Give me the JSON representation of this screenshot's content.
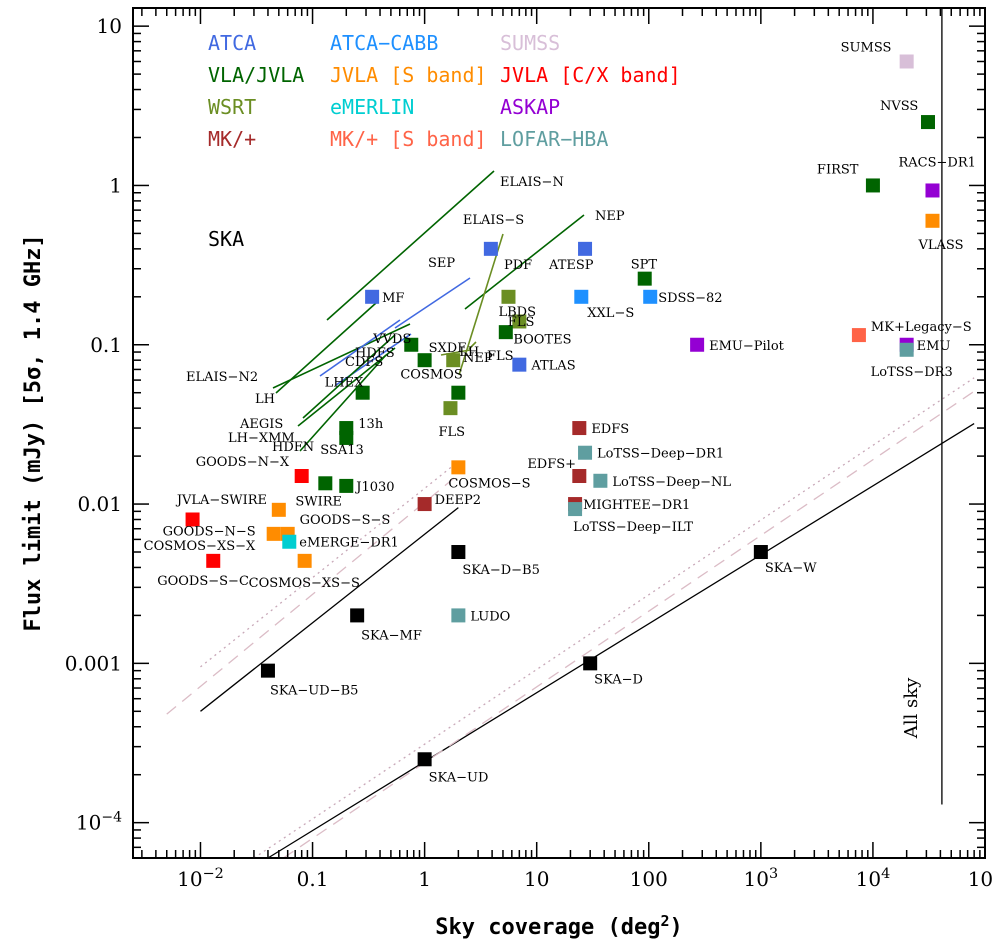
{
  "chart_data": {
    "type": "scatter",
    "xlabel": "Sky coverage (deg²)",
    "ylabel": "Flux limit (mJy) [5σ, 1.4 GHz]",
    "x_scale": "log",
    "y_scale": "log",
    "xlim": [
      0.0025,
      100000
    ],
    "ylim": [
      6e-05,
      13
    ],
    "x_ticks": [
      {
        "v": 0.01,
        "mant": "10",
        "exp": "−2"
      },
      {
        "v": 0.1,
        "text": "0.1"
      },
      {
        "v": 1,
        "text": "1"
      },
      {
        "v": 10,
        "text": "10"
      },
      {
        "v": 100,
        "text": "100"
      },
      {
        "v": 1000,
        "mant": "10",
        "exp": "3"
      },
      {
        "v": 10000,
        "mant": "10",
        "exp": "4"
      },
      {
        "v": 100000,
        "mant": "10",
        "exp": "5"
      }
    ],
    "y_ticks": [
      {
        "v": 0.0001,
        "mant": "10",
        "exp": "−4"
      },
      {
        "v": 0.001,
        "text": "0.001"
      },
      {
        "v": 0.01,
        "text": "0.01"
      },
      {
        "v": 0.1,
        "text": "0.1"
      },
      {
        "v": 1,
        "text": "1"
      },
      {
        "v": 10,
        "text": "10"
      }
    ],
    "legend": [
      {
        "label": "ATCA",
        "color": "#4169e1"
      },
      {
        "label": "ATCA−CABB",
        "color": "#1e90ff"
      },
      {
        "label": "SUMSS",
        "color": "#d8bfd8"
      },
      {
        "label": "VLA/JVLA",
        "color": "#006400"
      },
      {
        "label": "JVLA [S band]",
        "color": "#ff8c00"
      },
      {
        "label": "JVLA [C/X band]",
        "color": "#ff0000"
      },
      {
        "label": "WSRT",
        "color": "#6b8e23"
      },
      {
        "label": "eMERLIN",
        "color": "#00ced1"
      },
      {
        "label": "ASKAP",
        "color": "#9400d3"
      },
      {
        "label": "MK/+",
        "color": "#a52a2a"
      },
      {
        "label": "MK/+ [S band]",
        "color": "#ff6347"
      },
      {
        "label": "LOFAR−HBA",
        "color": "#5f9ea0"
      }
    ],
    "ska_label": "SKA",
    "all_sky_label": "All sky",
    "points": [
      {
        "x": 20000,
        "y": 6,
        "color": "#d8bfd8",
        "label": "SUMSS"
      },
      {
        "x": 31000,
        "y": 2.5,
        "color": "#006400",
        "label": "NVSS"
      },
      {
        "x": 10000,
        "y": 1,
        "color": "#006400",
        "label": "FIRST"
      },
      {
        "x": 34000,
        "y": 0.93,
        "color": "#9400d3",
        "label": "RACS−DR1"
      },
      {
        "x": 34000,
        "y": 0.6,
        "color": "#ff8c00",
        "label": "VLASS"
      },
      {
        "x": 7500,
        "y": 0.115,
        "color": "#ff6347",
        "label": "MK+Legacy−S"
      },
      {
        "x": 20000,
        "y": 0.1,
        "color": "#9400d3",
        "label": "EMU"
      },
      {
        "x": 20000,
        "y": 0.093,
        "color": "#5f9ea0",
        "label": "LoTSS−DR3"
      },
      {
        "x": 270,
        "y": 0.1,
        "color": "#9400d3",
        "label": "EMU−Pilot"
      },
      {
        "x": 92,
        "y": 0.26,
        "color": "#006400",
        "label": "SPT"
      },
      {
        "x": 103,
        "y": 0.2,
        "color": "#1e90ff",
        "label": "SDSS−82"
      },
      {
        "x": 27,
        "y": 0.4,
        "color": "#4169e1",
        "label": "ATESP"
      },
      {
        "x": 25,
        "y": 0.2,
        "color": "#1e90ff",
        "label": "XXL−S"
      },
      {
        "x": 3.9,
        "y": 0.4,
        "color": "#4169e1",
        "label": "ELAIS−S"
      },
      {
        "x": 5.6,
        "y": 0.2,
        "color": "#6b8e23",
        "label": "LBDS"
      },
      {
        "x": 7,
        "y": 0.14,
        "color": "#6b8e23",
        "label": "BOOTES"
      },
      {
        "x": 5.3,
        "y": 0.12,
        "color": "#006400",
        "label": "FLS"
      },
      {
        "x": 7,
        "y": 0.075,
        "color": "#4169e1",
        "label": "ATLAS"
      },
      {
        "x": 0.34,
        "y": 0.2,
        "color": "#4169e1",
        "label": "MF"
      },
      {
        "x": 0.76,
        "y": 0.1,
        "color": "#006400",
        "label": "VVDS"
      },
      {
        "x": 1,
        "y": 0.08,
        "color": "#006400",
        "label": "SXDF"
      },
      {
        "x": 1.8,
        "y": 0.08,
        "color": "#6b8e23",
        "label": "LH"
      },
      {
        "x": 2,
        "y": 0.05,
        "color": "#006400",
        "label": "COSMOS"
      },
      {
        "x": 0.28,
        "y": 0.05,
        "color": "#006400",
        "label": "LHEX"
      },
      {
        "x": 1.7,
        "y": 0.04,
        "color": "#6b8e23",
        "label": "FLS"
      },
      {
        "x": 0.2,
        "y": 0.03,
        "color": "#006400",
        "label": "13h"
      },
      {
        "x": 0.2,
        "y": 0.026,
        "color": "#006400",
        "label": "SSA13"
      },
      {
        "x": 0.13,
        "y": 0.0135,
        "color": "#006400",
        "label": "SWIRE"
      },
      {
        "x": 0.2,
        "y": 0.013,
        "color": "#006400",
        "label": "J1030"
      },
      {
        "x": 0.08,
        "y": 0.015,
        "color": "#ff0000",
        "label": "GOODS−N−X"
      },
      {
        "x": 0.05,
        "y": 0.0092,
        "color": "#ff8c00",
        "label": "JVLA−SWIRE"
      },
      {
        "x": 0.0085,
        "y": 0.008,
        "color": "#ff0000",
        "label": "GOODS−N−S"
      },
      {
        "x": 0.045,
        "y": 0.0065,
        "color": "#ff8c00",
        "label": "COSMOS−XS−X"
      },
      {
        "x": 0.06,
        "y": 0.0065,
        "color": "#ff8c00",
        "label": "GOODS−S−S"
      },
      {
        "x": 0.062,
        "y": 0.0058,
        "color": "#00ced1",
        "label": "eMERGE−DR1"
      },
      {
        "x": 0.013,
        "y": 0.0044,
        "color": "#ff0000",
        "label": "GOODS−S−C"
      },
      {
        "x": 0.085,
        "y": 0.0044,
        "color": "#ff8c00",
        "label": "COSMOS−XS−S"
      },
      {
        "x": 1,
        "y": 0.01,
        "color": "#a52a2a",
        "label": "DEEP2"
      },
      {
        "x": 2,
        "y": 0.017,
        "color": "#ff8c00",
        "label": "COSMOS−S"
      },
      {
        "x": 24,
        "y": 0.03,
        "color": "#a52a2a",
        "label": "EDFS"
      },
      {
        "x": 27,
        "y": 0.021,
        "color": "#5f9ea0",
        "label": "LoTSS−Deep−DR1"
      },
      {
        "x": 24,
        "y": 0.015,
        "color": "#a52a2a",
        "label": "EDFS+"
      },
      {
        "x": 37,
        "y": 0.014,
        "color": "#5f9ea0",
        "label": "LoTSS−Deep−NL"
      },
      {
        "x": 22,
        "y": 0.01,
        "color": "#a52a2a",
        "label": "MIGHTEE−DR1"
      },
      {
        "x": 22,
        "y": 0.0093,
        "color": "#5f9ea0",
        "label": "LoTSS−Deep−ILT"
      },
      {
        "x": 2,
        "y": 0.002,
        "color": "#5f9ea0",
        "label": "LUDO"
      },
      {
        "x": 2,
        "y": 0.005,
        "color": "#000000",
        "label": "SKA−D−B5"
      },
      {
        "x": 0.25,
        "y": 0.002,
        "color": "#000000",
        "label": "SKA−MF"
      },
      {
        "x": 0.04,
        "y": 0.0009,
        "color": "#000000",
        "label": "SKA−UD−B5"
      },
      {
        "x": 1000,
        "y": 0.005,
        "color": "#000000",
        "label": "SKA−W"
      },
      {
        "x": 30,
        "y": 0.001,
        "color": "#000000",
        "label": "SKA−D"
      },
      {
        "x": 1,
        "y": 0.00025,
        "color": "#000000",
        "label": "SKA−UD"
      }
    ],
    "segments": [
      {
        "label": "ELAIS−N",
        "color": "#006400"
      },
      {
        "label": "NEP",
        "color": "#006400"
      },
      {
        "label": "SEP",
        "color": "#4169e1"
      },
      {
        "label": "PDF",
        "color": "#6b8e23"
      },
      {
        "label": "ELAIS−N2",
        "color": "#006400"
      },
      {
        "label": "LH",
        "color": "#006400"
      },
      {
        "label": "CDFS",
        "color": "#4169e1"
      },
      {
        "label": "HDFS",
        "color": "#4169e1"
      },
      {
        "label": "NEP",
        "color": "#6b8e23"
      },
      {
        "label": "FLS",
        "color": "#6b8e23"
      },
      {
        "label": "AEGIS",
        "color": "#006400"
      },
      {
        "label": "LH−XMM",
        "color": "#006400"
      },
      {
        "label": "HDFN",
        "color": "#006400"
      }
    ],
    "sensitivity_lines": [
      {
        "style": "solid",
        "color": "#000000"
      },
      {
        "style": "dashed",
        "color": "#dbbcc6"
      },
      {
        "style": "dotted",
        "color": "#c8a8b8"
      }
    ]
  }
}
